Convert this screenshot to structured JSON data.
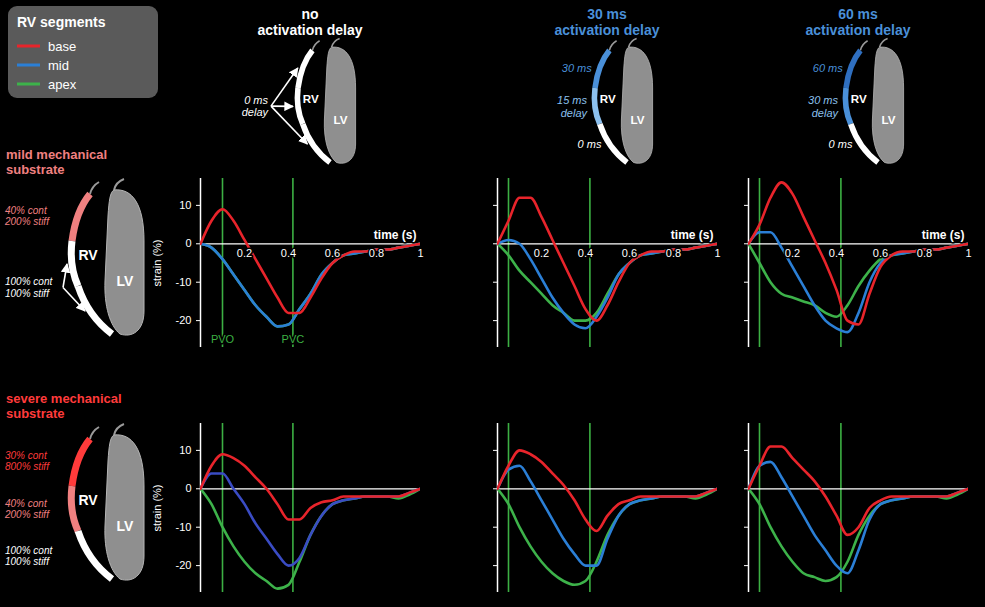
{
  "figure": {
    "legend_title": "RV segments",
    "chamber_labels": [
      "RV",
      "LV"
    ],
    "columns": [
      {
        "title": "no activation delay",
        "color": "#ffffff",
        "labels": [
          {
            "text": "0 ms delay",
            "color": "#ffffff"
          }
        ],
        "colors": [
          "#ffffff",
          "#ffffff",
          "#ffffff"
        ]
      },
      {
        "title": "30 ms activation delay",
        "color": "#4a90d9",
        "labels": [
          {
            "text": "30 ms",
            "color": "#4a90d9"
          },
          {
            "text": "15 ms delay",
            "color": "#8cc0ee"
          },
          {
            "text": "0 ms",
            "color": "#ffffff"
          }
        ],
        "colors": [
          "#4a90d9",
          "#8cc0ee",
          "#ffffff"
        ]
      },
      {
        "title": "60 ms activation delay",
        "color": "#4a90d9",
        "labels": [
          {
            "text": "60 ms",
            "color": "#4a90d9"
          },
          {
            "text": "30 ms delay",
            "color": "#8cc0ee"
          },
          {
            "text": "0 ms",
            "color": "#ffffff"
          }
        ],
        "colors": [
          "#2f6fc0",
          "#4a90d9",
          "#ffffff"
        ]
      }
    ],
    "rows": [
      {
        "title": "mild mechanical substrate",
        "color": "#f08080",
        "labels": [
          {
            "text": "40% cont 200% stiff",
            "color": "#f08080"
          },
          {
            "text": "100% cont 100% stiff",
            "color": "#ffffff"
          }
        ],
        "colors": [
          "#f08080",
          "#ffffff",
          "#ffffff"
        ]
      },
      {
        "title": "severe mechanical substrate",
        "color": "#ff3b3b",
        "labels": [
          {
            "text": "30% cont 800% stiff",
            "color": "#ff3b3b"
          },
          {
            "text": "40% cont 200% stiff",
            "color": "#f08080"
          },
          {
            "text": "100% cont 100% stiff",
            "color": "#ffffff"
          }
        ],
        "colors": [
          "#ff3b3b",
          "#f08080",
          "#ffffff"
        ]
      }
    ]
  },
  "chart_data": [
    {
      "type": "line",
      "legend": "top-left",
      "x": [
        0,
        0.05,
        0.1,
        0.15,
        0.2,
        0.25,
        0.3,
        0.35,
        0.4,
        0.45,
        0.5,
        0.55,
        0.6,
        0.65,
        0.7,
        0.75,
        0.8,
        0.85,
        0.9,
        0.95,
        1
      ],
      "series": [
        {
          "name": "base",
          "color": "#e8242b",
          "values": [
            0,
            6,
            9,
            6,
            1,
            -4,
            -9,
            -14,
            -18,
            -18,
            -14,
            -9,
            -5,
            -3,
            -2,
            -2,
            -1.5,
            -1.5,
            -1,
            -0.5,
            0
          ]
        },
        {
          "name": "mid",
          "color": "#2b7fd6",
          "values": [
            0,
            -1,
            -4,
            -8,
            -12,
            -16,
            -19,
            -21.5,
            -21,
            -17,
            -13,
            -8,
            -5,
            -3,
            -2.5,
            -2,
            -1.5,
            -1.5,
            -1,
            -0.5,
            0
          ]
        },
        {
          "name": "apex",
          "color": "#3db24a",
          "values": [
            0,
            -1,
            -4,
            -8,
            -12,
            -16,
            -19,
            -21.5,
            -21,
            -17,
            -13,
            -8,
            -5,
            -3,
            -2.5,
            -2,
            -1.5,
            -1.5,
            -1,
            -0.5,
            0
          ]
        }
      ],
      "xlim": [
        0,
        1
      ],
      "ylim": [
        -27,
        17
      ],
      "xticks": [
        0.2,
        0.4,
        0.6,
        0.8,
        1
      ],
      "yticks": [
        10,
        0,
        -10,
        -20
      ],
      "x_label": "time (s)",
      "y_label": "strain (%)",
      "annotations": [
        {
          "x": 0.1,
          "label": "PVO"
        },
        {
          "x": 0.42,
          "label": "PVC"
        }
      ]
    },
    {
      "type": "line",
      "x": [
        0,
        0.05,
        0.1,
        0.15,
        0.2,
        0.25,
        0.3,
        0.35,
        0.4,
        0.45,
        0.5,
        0.55,
        0.6,
        0.65,
        0.7,
        0.75,
        0.8,
        0.85,
        0.9,
        0.95,
        1
      ],
      "series": [
        {
          "name": "base",
          "color": "#e8242b",
          "values": [
            0,
            6,
            12,
            12,
            7,
            1,
            -5,
            -11,
            -17,
            -20,
            -16,
            -10,
            -5,
            -3,
            -2,
            -2,
            -1.5,
            -1.5,
            -1,
            -0.5,
            0
          ]
        },
        {
          "name": "mid",
          "color": "#2b7fd6",
          "values": [
            0,
            1,
            0,
            -4,
            -9,
            -14,
            -18,
            -21,
            -22,
            -19,
            -14,
            -8,
            -5,
            -3,
            -2.5,
            -2,
            -1.5,
            -1.5,
            -1,
            -0.5,
            0
          ]
        },
        {
          "name": "apex",
          "color": "#3db24a",
          "values": [
            0,
            -3,
            -7,
            -10,
            -13,
            -16,
            -18,
            -20,
            -20,
            -18,
            -13,
            -8,
            -5,
            -3,
            -2.5,
            -2,
            -1.5,
            -1.5,
            -1,
            -0.5,
            0
          ]
        }
      ],
      "xlim": [
        0,
        1
      ],
      "ylim": [
        -27,
        17
      ],
      "xticks": [
        0.2,
        0.4,
        0.6,
        0.8,
        1
      ],
      "yticks": [
        10,
        0,
        -10,
        -20
      ],
      "x_label": "time (s)",
      "tick_labels": "x",
      "annotations": [
        {
          "x": 0.05
        },
        {
          "x": 0.42
        }
      ]
    },
    {
      "type": "line",
      "x": [
        0,
        0.05,
        0.1,
        0.15,
        0.2,
        0.25,
        0.3,
        0.35,
        0.4,
        0.45,
        0.5,
        0.55,
        0.6,
        0.65,
        0.7,
        0.75,
        0.8,
        0.85,
        0.9,
        0.95,
        1
      ],
      "series": [
        {
          "name": "base",
          "color": "#e8242b",
          "values": [
            0,
            5,
            12,
            16,
            13,
            7,
            1,
            -5,
            -12,
            -20,
            -21,
            -13,
            -6,
            -3,
            -2,
            -2,
            -1.5,
            -1.5,
            -1,
            -0.5,
            0
          ]
        },
        {
          "name": "mid",
          "color": "#2b7fd6",
          "values": [
            0,
            3,
            3,
            -1,
            -6,
            -11,
            -16,
            -20,
            -22,
            -23,
            -18,
            -10,
            -5,
            -3,
            -2.5,
            -2,
            -1.5,
            -1.5,
            -1,
            -0.5,
            0
          ]
        },
        {
          "name": "apex",
          "color": "#3db24a",
          "values": [
            0,
            -5,
            -10,
            -13,
            -14,
            -15,
            -16,
            -18,
            -19,
            -16,
            -11,
            -7,
            -4,
            -3,
            -2.5,
            -2,
            -1.5,
            -1.5,
            -1,
            -0.5,
            0
          ]
        }
      ],
      "xlim": [
        0,
        1
      ],
      "ylim": [
        -27,
        17
      ],
      "xticks": [
        0.2,
        0.4,
        0.6,
        0.8,
        1
      ],
      "yticks": [
        10,
        0,
        -10,
        -20
      ],
      "x_label": "time (s)",
      "tick_labels": "x",
      "annotations": [
        {
          "x": 0.05
        },
        {
          "x": 0.42
        }
      ]
    },
    {
      "type": "line",
      "x": [
        0,
        0.05,
        0.1,
        0.15,
        0.2,
        0.25,
        0.3,
        0.35,
        0.4,
        0.45,
        0.5,
        0.55,
        0.6,
        0.65,
        0.7,
        0.75,
        0.8,
        0.85,
        0.9,
        0.95,
        1
      ],
      "series": [
        {
          "name": "base",
          "color": "#e8242b",
          "values": [
            0,
            6,
            9,
            8,
            6,
            3,
            0,
            -4,
            -8,
            -8,
            -5,
            -3.5,
            -3,
            -2,
            -2,
            -2,
            -2,
            -2,
            -2,
            -1,
            0
          ]
        },
        {
          "name": "mid",
          "color": "#3a4cc4",
          "values": [
            0,
            4,
            4,
            0,
            -4,
            -9,
            -13,
            -17,
            -20,
            -18,
            -12,
            -7,
            -4,
            -3,
            -2.5,
            -2,
            -2,
            -2,
            -2,
            -1,
            0
          ]
        },
        {
          "name": "apex",
          "color": "#3db24a",
          "values": [
            0,
            -4,
            -10,
            -15,
            -19,
            -22,
            -24,
            -26,
            -25,
            -19,
            -12,
            -7,
            -4,
            -3,
            -2.5,
            -2,
            -2,
            -2,
            -2.5,
            -1.5,
            0
          ]
        }
      ],
      "xlim": [
        0,
        1
      ],
      "ylim": [
        -27,
        17
      ],
      "yticks": [
        10,
        0,
        -10,
        -20
      ],
      "y_label": "strain (%)",
      "tick_labels": "y",
      "annotations": [
        {
          "x": 0.1
        },
        {
          "x": 0.42
        }
      ]
    },
    {
      "type": "line",
      "x": [
        0,
        0.05,
        0.1,
        0.15,
        0.2,
        0.25,
        0.3,
        0.35,
        0.4,
        0.45,
        0.5,
        0.55,
        0.6,
        0.65,
        0.7,
        0.75,
        0.8,
        0.85,
        0.9,
        0.95,
        1
      ],
      "series": [
        {
          "name": "base",
          "color": "#e8242b",
          "values": [
            0,
            6,
            10,
            9,
            7,
            4,
            1,
            -3,
            -8,
            -11,
            -7,
            -4,
            -3,
            -2,
            -2,
            -2,
            -2,
            -2,
            -2,
            -1,
            0
          ]
        },
        {
          "name": "mid",
          "color": "#2b7fd6",
          "values": [
            0,
            5,
            6,
            2,
            -3,
            -8,
            -13,
            -17,
            -20,
            -20,
            -13,
            -7,
            -4,
            -3,
            -2.5,
            -2,
            -2,
            -2,
            -2,
            -1,
            0
          ]
        },
        {
          "name": "apex",
          "color": "#3db24a",
          "values": [
            0,
            -4,
            -10,
            -15,
            -19,
            -22,
            -24,
            -25,
            -24,
            -19,
            -12,
            -7,
            -4,
            -3,
            -2.5,
            -2,
            -2,
            -2,
            -2.5,
            -1.5,
            0
          ]
        }
      ],
      "xlim": [
        0,
        1
      ],
      "ylim": [
        -27,
        17
      ],
      "yticks": [
        10,
        0,
        -10,
        -20
      ],
      "tick_labels": false,
      "annotations": [
        {
          "x": 0.05
        },
        {
          "x": 0.42
        }
      ]
    },
    {
      "type": "line",
      "x": [
        0,
        0.05,
        0.1,
        0.15,
        0.2,
        0.25,
        0.3,
        0.35,
        0.4,
        0.45,
        0.5,
        0.55,
        0.6,
        0.65,
        0.7,
        0.75,
        0.8,
        0.85,
        0.9,
        0.95,
        1
      ],
      "series": [
        {
          "name": "base",
          "color": "#e8242b",
          "values": [
            0,
            6,
            11,
            11,
            8,
            5,
            2,
            -2,
            -7,
            -12,
            -10,
            -5,
            -3,
            -2,
            -2,
            -2,
            -2,
            -2,
            -2,
            -1,
            0
          ]
        },
        {
          "name": "mid",
          "color": "#2b7fd6",
          "values": [
            0,
            6,
            7,
            3,
            -2,
            -7,
            -12,
            -16,
            -20,
            -22,
            -16,
            -8,
            -4,
            -3,
            -2.5,
            -2,
            -2,
            -2,
            -2,
            -1,
            0
          ]
        },
        {
          "name": "apex",
          "color": "#3db24a",
          "values": [
            0,
            -4,
            -10,
            -15,
            -19,
            -22,
            -23,
            -24,
            -23,
            -19,
            -12,
            -7,
            -4,
            -3,
            -2.5,
            -2,
            -2,
            -2,
            -2.5,
            -1.5,
            0
          ]
        }
      ],
      "xlim": [
        0,
        1
      ],
      "ylim": [
        -27,
        17
      ],
      "yticks": [
        10,
        0,
        -10,
        -20
      ],
      "tick_labels": false,
      "annotations": [
        {
          "x": 0.05
        },
        {
          "x": 0.42
        }
      ]
    }
  ]
}
